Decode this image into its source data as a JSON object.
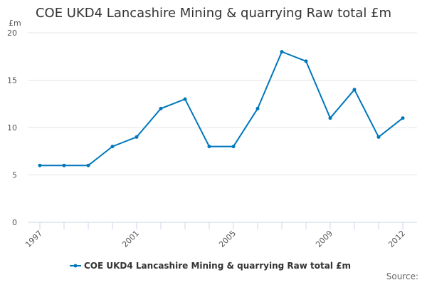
{
  "chart_data": {
    "type": "line",
    "title": "COE UKD4 Lancashire Mining & quarrying Raw total £m",
    "ylabel": "£m",
    "xlabel": "",
    "x": [
      1997,
      1998,
      1999,
      2000,
      2001,
      2002,
      2003,
      2004,
      2005,
      2006,
      2007,
      2008,
      2009,
      2010,
      2011,
      2012
    ],
    "x_tick_labels": [
      "1997",
      "2001",
      "2005",
      "2009",
      "2012"
    ],
    "y_ticks": [
      0,
      5,
      10,
      15,
      20
    ],
    "ylim": [
      0,
      20
    ],
    "grid": "horizontal",
    "legend": "bottom",
    "series": [
      {
        "name": "COE UKD4 Lancashire Mining & quarrying Raw total £m",
        "color": "#0077bb",
        "values": [
          6,
          6,
          6,
          8,
          9,
          12,
          13,
          8,
          8,
          12,
          18,
          17,
          11,
          14,
          9,
          11
        ]
      }
    ]
  },
  "source_label": "Source:"
}
